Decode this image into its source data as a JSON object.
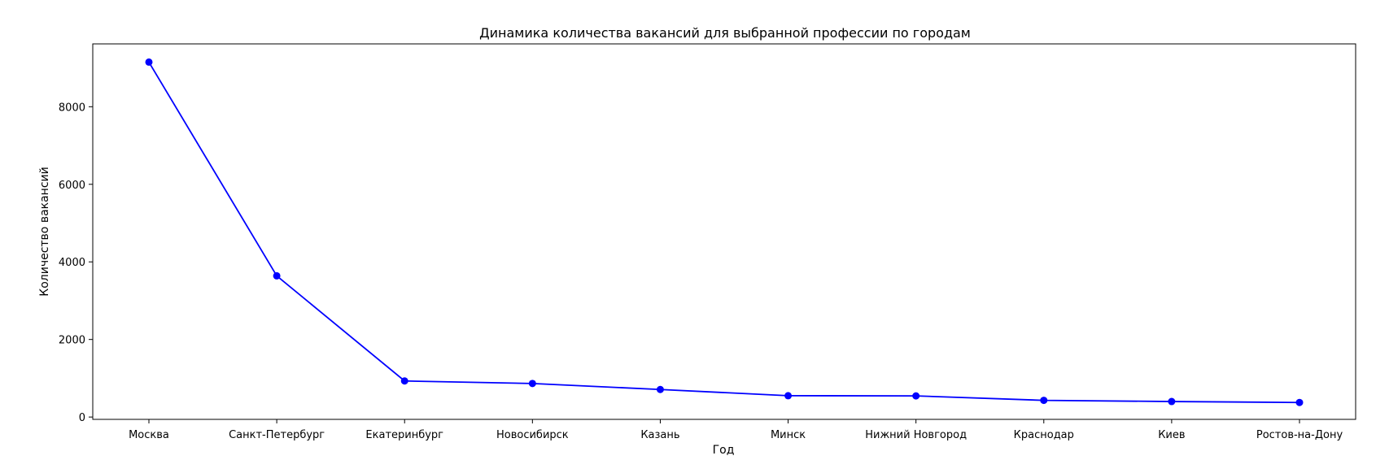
{
  "chart_data": {
    "type": "line",
    "title": "Динамика количества вакансий для выбранной профессии по городам",
    "xlabel": "Год",
    "ylabel": "Количество вакансий",
    "categories": [
      "Москва",
      "Санкт-Петербург",
      "Екатеринбург",
      "Новосибирск",
      "Казань",
      "Минск",
      "Нижний Новгород",
      "Краснодар",
      "Киев",
      "Ростов-на-Дону"
    ],
    "series": [
      {
        "values": [
          9150,
          3640,
          930,
          865,
          710,
          550,
          545,
          430,
          400,
          375
        ]
      }
    ],
    "ylim": [
      -60,
      9620
    ],
    "yticks": [
      0,
      2000,
      4000,
      6000,
      8000
    ],
    "grid": false,
    "legend": false,
    "colors": {
      "line": "#0000ff",
      "marker": "#0000ff"
    }
  }
}
